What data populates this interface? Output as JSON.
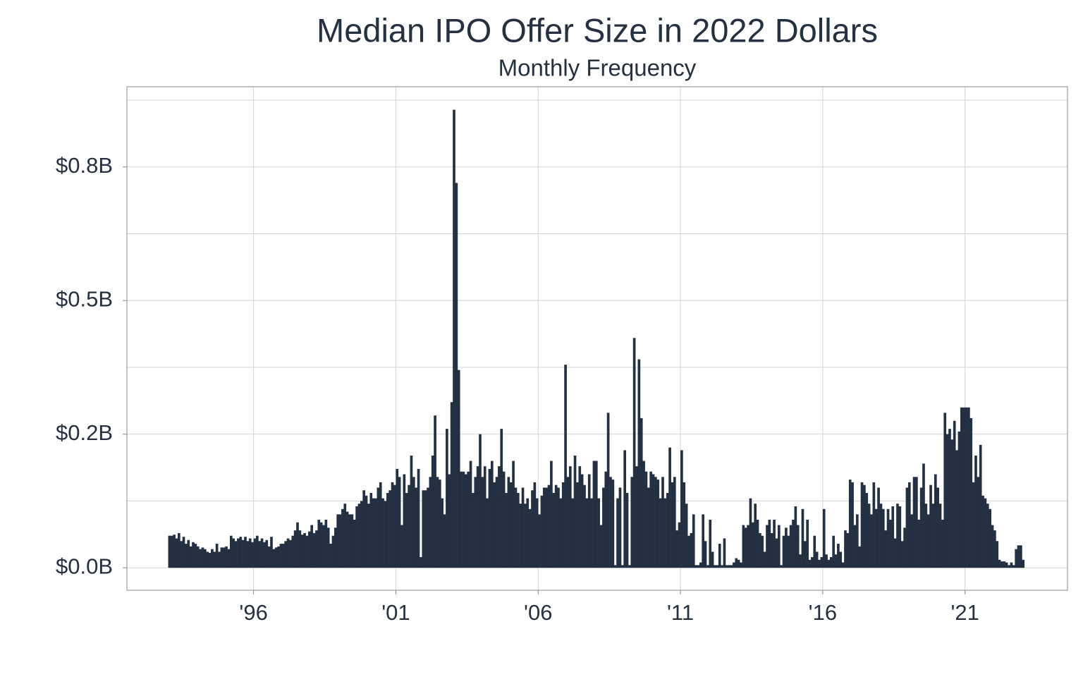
{
  "chart_data": {
    "type": "bar",
    "title": "Median IPO Offer Size in 2022 Dollars",
    "subtitle": "Monthly Frequency",
    "color": "#233041",
    "grid": true,
    "xlim": [
      1991.55,
      2024.6
    ],
    "xticks": [
      {
        "value": 1996,
        "label": "'96"
      },
      {
        "value": 2001,
        "label": "'01"
      },
      {
        "value": 2006,
        "label": "'06"
      },
      {
        "value": 2011,
        "label": "'11"
      },
      {
        "value": 2016,
        "label": "'16"
      },
      {
        "value": 2021,
        "label": "'21"
      }
    ],
    "ylim": [
      -0.042,
      0.9
    ],
    "yticks": [
      {
        "value": 0,
        "label": "$0.0B"
      },
      {
        "value": 0.25,
        "label": "$0.2B"
      },
      {
        "value": 0.5,
        "label": "$0.5B"
      },
      {
        "value": 0.75,
        "label": "$0.8B"
      }
    ],
    "y_minor_gridlines": [
      0.125,
      0.375,
      0.625,
      0.875
    ],
    "x": [
      "1993-01",
      "1993-02",
      "1993-03",
      "1993-04",
      "1993-05",
      "1993-06",
      "1993-07",
      "1993-08",
      "1993-09",
      "1993-10",
      "1993-11",
      "1993-12",
      "1994-01",
      "1994-02",
      "1994-03",
      "1994-04",
      "1994-05",
      "1994-06",
      "1994-07",
      "1994-08",
      "1994-09",
      "1994-10",
      "1994-11",
      "1994-12",
      "1995-01",
      "1995-02",
      "1995-03",
      "1995-04",
      "1995-05",
      "1995-06",
      "1995-07",
      "1995-08",
      "1995-09",
      "1995-10",
      "1995-11",
      "1995-12",
      "1996-01",
      "1996-02",
      "1996-03",
      "1996-04",
      "1996-05",
      "1996-06",
      "1996-07",
      "1996-08",
      "1996-09",
      "1996-10",
      "1996-11",
      "1996-12",
      "1997-01",
      "1997-02",
      "1997-03",
      "1997-04",
      "1997-05",
      "1997-06",
      "1997-07",
      "1997-08",
      "1997-09",
      "1997-10",
      "1997-11",
      "1997-12",
      "1998-01",
      "1998-02",
      "1998-03",
      "1998-04",
      "1998-05",
      "1998-06",
      "1998-07",
      "1998-08",
      "1998-09",
      "1998-10",
      "1998-11",
      "1998-12",
      "1999-01",
      "1999-02",
      "1999-03",
      "1999-04",
      "1999-05",
      "1999-06",
      "1999-07",
      "1999-08",
      "1999-09",
      "1999-10",
      "1999-11",
      "1999-12",
      "2000-01",
      "2000-02",
      "2000-03",
      "2000-04",
      "2000-05",
      "2000-06",
      "2000-07",
      "2000-08",
      "2000-09",
      "2000-10",
      "2000-11",
      "2000-12",
      "2001-01",
      "2001-02",
      "2001-03",
      "2001-04",
      "2001-05",
      "2001-06",
      "2001-07",
      "2001-08",
      "2001-09",
      "2001-10",
      "2001-11",
      "2001-12",
      "2002-01",
      "2002-02",
      "2002-03",
      "2002-04",
      "2002-05",
      "2002-06",
      "2002-07",
      "2002-08",
      "2002-09",
      "2002-10",
      "2002-11",
      "2002-12",
      "2003-01",
      "2003-02",
      "2003-03",
      "2003-04",
      "2003-05",
      "2003-06",
      "2003-07",
      "2003-08",
      "2003-09",
      "2003-10",
      "2003-11",
      "2003-12",
      "2004-01",
      "2004-02",
      "2004-03",
      "2004-04",
      "2004-05",
      "2004-06",
      "2004-07",
      "2004-08",
      "2004-09",
      "2004-10",
      "2004-11",
      "2004-12",
      "2005-01",
      "2005-02",
      "2005-03",
      "2005-04",
      "2005-05",
      "2005-06",
      "2005-07",
      "2005-08",
      "2005-09",
      "2005-10",
      "2005-11",
      "2005-12",
      "2006-01",
      "2006-02",
      "2006-03",
      "2006-04",
      "2006-05",
      "2006-06",
      "2006-07",
      "2006-08",
      "2006-09",
      "2006-10",
      "2006-11",
      "2006-12",
      "2007-01",
      "2007-02",
      "2007-03",
      "2007-04",
      "2007-05",
      "2007-06",
      "2007-07",
      "2007-08",
      "2007-09",
      "2007-10",
      "2007-11",
      "2007-12",
      "2008-01",
      "2008-02",
      "2008-03",
      "2008-04",
      "2008-05",
      "2008-06",
      "2008-07",
      "2008-08",
      "2008-09",
      "2008-10",
      "2008-11",
      "2008-12",
      "2009-01",
      "2009-02",
      "2009-03",
      "2009-04",
      "2009-05",
      "2009-06",
      "2009-07",
      "2009-08",
      "2009-09",
      "2009-10",
      "2009-11",
      "2009-12",
      "2010-01",
      "2010-02",
      "2010-03",
      "2010-04",
      "2010-05",
      "2010-06",
      "2010-07",
      "2010-08",
      "2010-09",
      "2010-10",
      "2010-11",
      "2010-12",
      "2011-01",
      "2011-02",
      "2011-03",
      "2011-04",
      "2011-05",
      "2011-06",
      "2011-07",
      "2011-08",
      "2011-09",
      "2011-10",
      "2011-11",
      "2011-12",
      "2012-01",
      "2012-02",
      "2012-03",
      "2012-04",
      "2012-05",
      "2012-06",
      "2012-07",
      "2012-08",
      "2012-09",
      "2012-10",
      "2012-11",
      "2012-12",
      "2013-01",
      "2013-02",
      "2013-03",
      "2013-04",
      "2013-05",
      "2013-06",
      "2013-07",
      "2013-08",
      "2013-09",
      "2013-10",
      "2013-11",
      "2013-12",
      "2014-01",
      "2014-02",
      "2014-03",
      "2014-04",
      "2014-05",
      "2014-06",
      "2014-07",
      "2014-08",
      "2014-09",
      "2014-10",
      "2014-11",
      "2014-12",
      "2015-01",
      "2015-02",
      "2015-03",
      "2015-04",
      "2015-05",
      "2015-06",
      "2015-07",
      "2015-08",
      "2015-09",
      "2015-10",
      "2015-11",
      "2015-12",
      "2016-01",
      "2016-02",
      "2016-03",
      "2016-04",
      "2016-05",
      "2016-06",
      "2016-07",
      "2016-08",
      "2016-09",
      "2016-10",
      "2016-11",
      "2016-12",
      "2017-01",
      "2017-02",
      "2017-03",
      "2017-04",
      "2017-05",
      "2017-06",
      "2017-07",
      "2017-08",
      "2017-09",
      "2017-10",
      "2017-11",
      "2017-12",
      "2018-01",
      "2018-02",
      "2018-03",
      "2018-04",
      "2018-05",
      "2018-06",
      "2018-07",
      "2018-08",
      "2018-09",
      "2018-10",
      "2018-11",
      "2018-12",
      "2019-01",
      "2019-02",
      "2019-03",
      "2019-04",
      "2019-05",
      "2019-06",
      "2019-07",
      "2019-08",
      "2019-09",
      "2019-10",
      "2019-11",
      "2019-12",
      "2020-01",
      "2020-02",
      "2020-03",
      "2020-04",
      "2020-05",
      "2020-06",
      "2020-07",
      "2020-08",
      "2020-09",
      "2020-10",
      "2020-11",
      "2020-12",
      "2021-01",
      "2021-02",
      "2021-03",
      "2021-04",
      "2021-05",
      "2021-06",
      "2021-07",
      "2021-08",
      "2021-09",
      "2021-10",
      "2021-11",
      "2021-12",
      "2022-01",
      "2022-02",
      "2022-03",
      "2022-04",
      "2022-05",
      "2022-06",
      "2022-07",
      "2022-08",
      "2022-09",
      "2022-10",
      "2022-11",
      "2022-12",
      "2023-01"
    ],
    "values": [
      0.06,
      0.06,
      0.062,
      0.055,
      0.065,
      0.05,
      0.058,
      0.045,
      0.052,
      0.04,
      0.048,
      0.045,
      0.04,
      0.035,
      0.038,
      0.035,
      0.03,
      0.028,
      0.035,
      0.03,
      0.045,
      0.03,
      0.038,
      0.038,
      0.04,
      0.035,
      0.06,
      0.055,
      0.05,
      0.055,
      0.058,
      0.052,
      0.058,
      0.05,
      0.055,
      0.048,
      0.055,
      0.06,
      0.05,
      0.055,
      0.048,
      0.052,
      0.04,
      0.058,
      0.035,
      0.038,
      0.04,
      0.045,
      0.045,
      0.05,
      0.055,
      0.052,
      0.06,
      0.07,
      0.085,
      0.07,
      0.062,
      0.065,
      0.06,
      0.068,
      0.08,
      0.065,
      0.07,
      0.09,
      0.085,
      0.08,
      0.09,
      0.075,
      0.045,
      0.06,
      0.075,
      0.1,
      0.1,
      0.11,
      0.12,
      0.105,
      0.1,
      0.1,
      0.09,
      0.115,
      0.12,
      0.125,
      0.145,
      0.135,
      0.12,
      0.14,
      0.13,
      0.13,
      0.15,
      0.16,
      0.13,
      0.125,
      0.14,
      0.145,
      0.16,
      0.155,
      0.185,
      0.17,
      0.08,
      0.175,
      0.14,
      0.155,
      0.21,
      0.17,
      0.15,
      0.185,
      0.02,
      0.145,
      0.145,
      0.15,
      0.17,
      0.21,
      0.285,
      0.17,
      0.165,
      0.13,
      0.1,
      0.26,
      0.175,
      0.31,
      0.857,
      0.72,
      0.37,
      0.18,
      0.18,
      0.175,
      0.18,
      0.2,
      0.14,
      0.17,
      0.19,
      0.25,
      0.17,
      0.19,
      0.13,
      0.185,
      0.2,
      0.16,
      0.17,
      0.19,
      0.26,
      0.18,
      0.14,
      0.17,
      0.16,
      0.2,
      0.15,
      0.14,
      0.12,
      0.15,
      0.12,
      0.13,
      0.11,
      0.145,
      0.16,
      0.13,
      0.1,
      0.135,
      0.15,
      0.15,
      0.155,
      0.2,
      0.14,
      0.155,
      0.15,
      0.13,
      0.16,
      0.38,
      0.17,
      0.19,
      0.13,
      0.21,
      0.16,
      0.19,
      0.175,
      0.155,
      0.13,
      0.175,
      0.13,
      0.2,
      0.2,
      0.13,
      0.08,
      0.15,
      0.18,
      0.29,
      0.17,
      0.165,
      0.005,
      0.13,
      0.15,
      0.005,
      0.22,
      0.14,
      0.005,
      0.17,
      0.43,
      0.19,
      0.39,
      0.28,
      0.2,
      0.18,
      0.15,
      0.18,
      0.175,
      0.17,
      0.165,
      0.13,
      0.17,
      0.13,
      0.14,
      0.225,
      0.16,
      0.17,
      0.07,
      0.085,
      0.22,
      0.16,
      0.12,
      0.06,
      0.065,
      0.1,
      0.005,
      0.005,
      0.01,
      0.1,
      0.05,
      0.005,
      0.09,
      0.03,
      0.005,
      0.005,
      0.045,
      0.005,
      0.055,
      0.005,
      0.005,
      0.005,
      0.01,
      0.018,
      0.015,
      0.01,
      0.08,
      0.075,
      0.08,
      0.13,
      0.085,
      0.12,
      0.09,
      0.065,
      0.06,
      0.03,
      0.08,
      0.09,
      0.065,
      0.09,
      0.055,
      0.08,
      0.005,
      0.06,
      0.075,
      0.06,
      0.08,
      0.09,
      0.115,
      0.08,
      0.025,
      0.11,
      0.05,
      0.09,
      0.015,
      0.02,
      0.06,
      0.03,
      0.015,
      0.02,
      0.11,
      0.025,
      0.015,
      0.02,
      0.06,
      0.025,
      0.045,
      0.03,
      0.01,
      0.07,
      0.065,
      0.165,
      0.16,
      0.08,
      0.1,
      0.04,
      0.16,
      0.155,
      0.14,
      0.12,
      0.1,
      0.16,
      0.11,
      0.15,
      0.12,
      0.11,
      0.07,
      0.11,
      0.09,
      0.115,
      0.055,
      0.12,
      0.115,
      0.05,
      0.075,
      0.15,
      0.16,
      0.1,
      0.17,
      0.17,
      0.09,
      0.15,
      0.195,
      0.12,
      0.1,
      0.155,
      0.12,
      0.175,
      0.15,
      0.12,
      0.09,
      0.29,
      0.25,
      0.26,
      0.24,
      0.275,
      0.22,
      0.255,
      0.3,
      0.3,
      0.3,
      0.3,
      0.28,
      0.16,
      0.21,
      0.17,
      0.23,
      0.135,
      0.13,
      0.12,
      0.11,
      0.08,
      0.07,
      0.05,
      0.015,
      0.012,
      0.012,
      0.01,
      0.005,
      0.01,
      0.005,
      0.035,
      0.042,
      0.042,
      0.015
    ]
  }
}
